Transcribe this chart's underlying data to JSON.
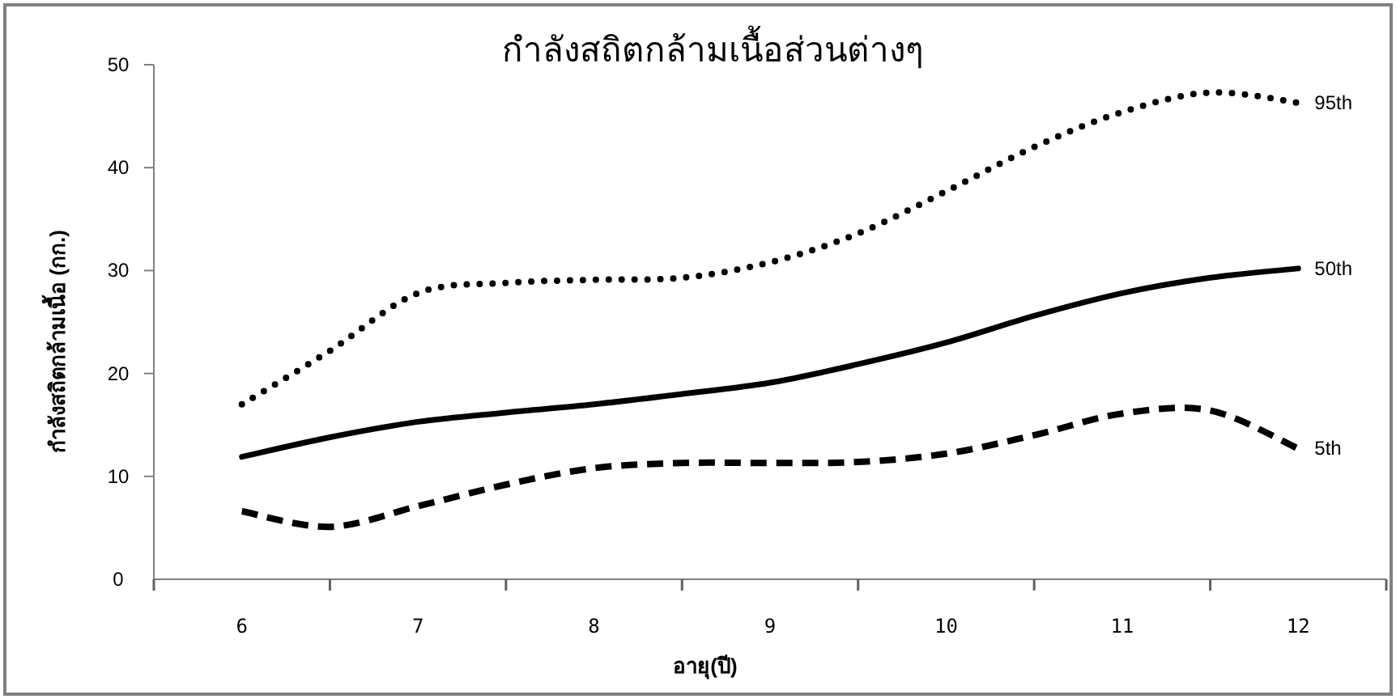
{
  "chart_data": {
    "type": "line",
    "title": "กำลังสถิตกล้ามเนื้อส่วนต่างๆ",
    "xlabel": "อายุ(ปี)",
    "ylabel": "กำลังสถิตกล้ามเนื้อ (กก.)",
    "x": [
      6,
      6.5,
      7,
      7.5,
      8,
      8.5,
      9,
      9.5,
      10,
      10.5,
      11,
      11.5,
      12
    ],
    "series": [
      {
        "name": "95th",
        "color": "#000000",
        "line_style": "dotted",
        "values": [
          17.0,
          22.2,
          27.8,
          28.8,
          29.1,
          29.3,
          30.8,
          33.6,
          37.7,
          42.0,
          45.4,
          47.3,
          46.3
        ]
      },
      {
        "name": "50th",
        "color": "#000000",
        "line_style": "solid",
        "values": [
          11.9,
          13.8,
          15.3,
          16.2,
          17.0,
          18.0,
          19.1,
          20.9,
          23.0,
          25.6,
          27.8,
          29.3,
          30.2
        ]
      },
      {
        "name": "5th",
        "color": "#000000",
        "line_style": "dashed",
        "values": [
          6.6,
          5.1,
          7.1,
          9.2,
          10.8,
          11.3,
          11.3,
          11.4,
          12.2,
          14.0,
          16.1,
          16.4,
          12.7
        ]
      }
    ],
    "xlim": [
      5.5,
      12.5
    ],
    "ylim": [
      0,
      50
    ],
    "xticks": [
      {
        "value": 5.5,
        "label": null
      },
      6,
      {
        "value": 6.5,
        "label": null
      },
      7,
      {
        "value": 7.5,
        "label": null
      },
      8,
      {
        "value": 8.5,
        "label": null
      },
      9,
      {
        "value": 9.5,
        "label": null
      },
      10,
      {
        "value": 10.5,
        "label": null
      },
      11,
      {
        "value": 11.5,
        "label": null
      },
      12,
      {
        "value": 12.5,
        "label": null
      }
    ],
    "yticks": [
      0,
      10,
      20,
      30,
      40,
      50
    ],
    "grid": false,
    "legend": false,
    "marker": "none"
  }
}
